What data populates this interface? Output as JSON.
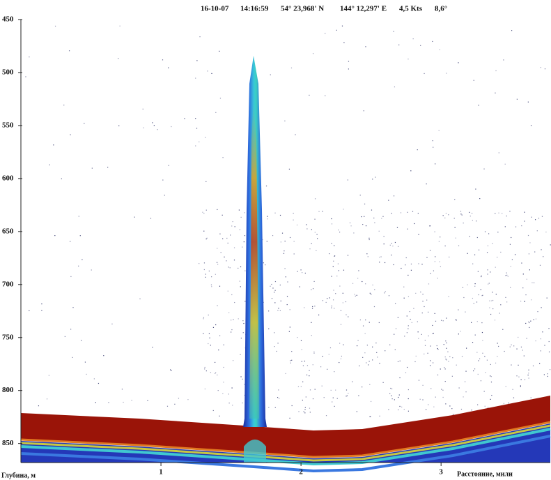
{
  "chart_data": {
    "type": "echogram",
    "header": [
      "16-10-07",
      "14:16:59",
      "54° 23,968' N",
      "144° 12,297' E",
      "4,5 Kts",
      "8,6°"
    ],
    "y_label": "Глубина, м",
    "x_label": "Расстояние, мили",
    "ylim": [
      450,
      868
    ],
    "yticks": [
      450,
      500,
      550,
      600,
      650,
      700,
      750,
      800,
      850
    ],
    "xlim": [
      0,
      3.78
    ],
    "xticks": [
      1,
      2,
      3
    ]
  }
}
